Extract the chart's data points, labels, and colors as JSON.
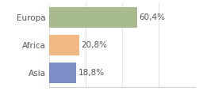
{
  "categories": [
    "Europa",
    "Africa",
    "Asia"
  ],
  "values": [
    60.4,
    20.8,
    18.8
  ],
  "labels": [
    "60,4%",
    "20,8%",
    "18,8%"
  ],
  "bar_colors": [
    "#a8bb8f",
    "#f0b984",
    "#7b8fc4"
  ],
  "xlim": [
    0,
    100
  ],
  "background_color": "#ffffff",
  "bar_height": 0.72,
  "label_fontsize": 7.5,
  "tick_fontsize": 7.5,
  "grid_color": "#dddddd",
  "text_color": "#555555"
}
